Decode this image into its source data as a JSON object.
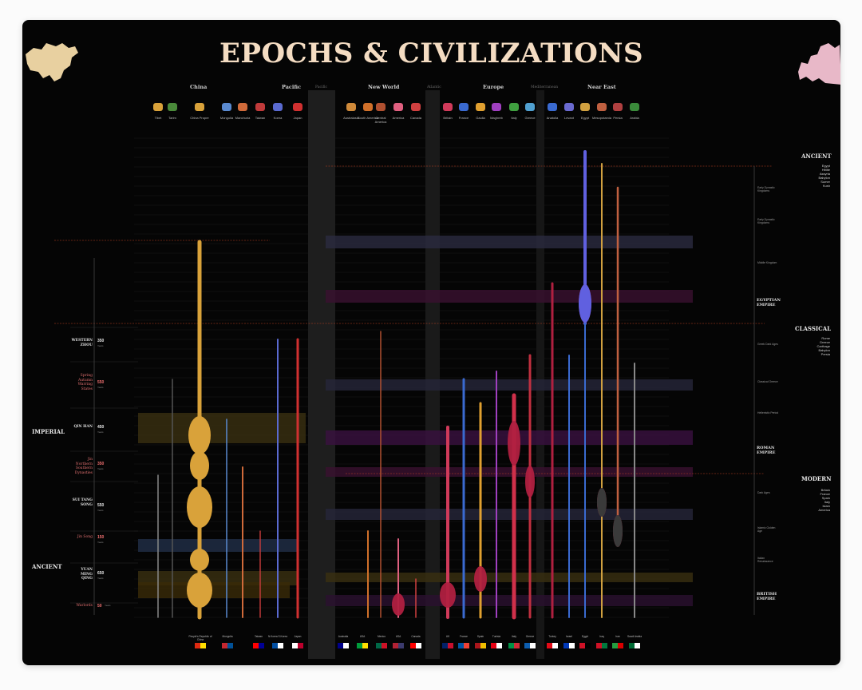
{
  "title": "EPOCHS & CIVILIZATIONS",
  "regions": [
    {
      "label": "China",
      "dim": false
    },
    {
      "label": "Pacific",
      "dim": false
    },
    {
      "label": "Pacific",
      "dim": true
    },
    {
      "label": "New World",
      "dim": false
    },
    {
      "label": "Atlantic",
      "dim": true
    },
    {
      "label": "Europe",
      "dim": false
    },
    {
      "label": "Mediterranean",
      "dim": true
    },
    {
      "label": "Near East",
      "dim": false
    }
  ],
  "columns": [
    {
      "label": "Tibet",
      "color": "#d9a23a"
    },
    {
      "label": "Tarim",
      "color": "#4a8a3a"
    },
    {
      "label": "China Proper",
      "color": "#d9a23a"
    },
    {
      "label": "Mongolia",
      "color": "#5a8ad0"
    },
    {
      "label": "Manchuria",
      "color": "#d06a3a"
    },
    {
      "label": "Taiwan",
      "color": "#c03a3a"
    },
    {
      "label": "Korea",
      "color": "#5a6ad0"
    },
    {
      "label": "Japan",
      "color": "#d03030"
    },
    {
      "label": "Australasia",
      "color": "#d08a3a"
    },
    {
      "label": "South America",
      "color": "#d0702a"
    },
    {
      "label": "Central America",
      "color": "#b05030"
    },
    {
      "label": "America",
      "color": "#e06080"
    },
    {
      "label": "Canada",
      "color": "#d04040"
    },
    {
      "label": "Britain",
      "color": "#d03a5a"
    },
    {
      "label": "France",
      "color": "#3a6ad0"
    },
    {
      "label": "Gaulia",
      "color": "#e0a030"
    },
    {
      "label": "Maghreb",
      "color": "#a040c0"
    },
    {
      "label": "Italy",
      "color": "#40a040"
    },
    {
      "label": "Greece",
      "color": "#50a0d0"
    },
    {
      "label": "Anatolia",
      "color": "#3a6ad0"
    },
    {
      "label": "Levant",
      "color": "#6a6ad0"
    },
    {
      "label": "Egypt",
      "color": "#d0a040"
    },
    {
      "label": "Mesopotamia",
      "color": "#c06040"
    },
    {
      "label": "Persia",
      "color": "#b04040"
    },
    {
      "label": "Arabia",
      "color": "#3a8a3a"
    }
  ],
  "epochs_left": [
    {
      "label": "IMPERIAL"
    },
    {
      "label": "ANCIENT"
    }
  ],
  "dynasties": [
    {
      "name": "WESTERN ZHOU",
      "num": "350",
      "red": false
    },
    {
      "name": "Spring Autumn Warring States",
      "num": "550",
      "red": true
    },
    {
      "name": "QIN HAN",
      "num": "450",
      "red": false
    },
    {
      "name": "Jin Northern Southern Dynasties",
      "num": "350",
      "red": true
    },
    {
      "name": "SUI TANG SONG",
      "num": "550",
      "red": false
    },
    {
      "name": "Jin Song",
      "num": "150",
      "red": true
    },
    {
      "name": "YUAN MING QING",
      "num": "650",
      "red": false
    },
    {
      "name": "Warlords",
      "num": "50",
      "red": true
    }
  ],
  "years_label": "Years",
  "epochs_right": [
    {
      "label": "ANCIENT",
      "items": [
        "Egypt",
        "Hittite",
        "Assyria",
        "Babylon",
        "Sumer",
        "Kush"
      ]
    },
    {
      "label": "CLASSICAL",
      "items": [
        "Rome",
        "Greece",
        "Carthage",
        "Babylon",
        "Persia"
      ]
    },
    {
      "label": "MODERN",
      "items": [
        "Britain",
        "France",
        "Spain",
        "Italy",
        "Islam",
        "America"
      ]
    }
  ],
  "right_empires": [
    {
      "label": "EGYPTIAN EMPIRE"
    },
    {
      "label": "ROMAN EMPIRE"
    },
    {
      "label": "BRITISH EMPIRE"
    }
  ],
  "right_periods": [
    {
      "label": "Early Dynastic Kingdoms"
    },
    {
      "label": "Early Dynastic Kingdoms"
    },
    {
      "label": "Middle Kingdom"
    },
    {
      "label": "Greek Dark Ages"
    },
    {
      "label": "Classical Greece"
    },
    {
      "label": "Hellenistic Period"
    },
    {
      "label": "Dark Ages"
    },
    {
      "label": "Islamic Golden Age"
    },
    {
      "label": "Italian Renaissance"
    }
  ],
  "bottom_flags": [
    {
      "label": "People's Republic of China",
      "colors": [
        "#de2910",
        "#ffde00"
      ]
    },
    {
      "label": "Mongolia",
      "colors": [
        "#c4272f",
        "#015197"
      ]
    },
    {
      "label": "Taiwan",
      "colors": [
        "#fe0000",
        "#000095"
      ]
    },
    {
      "label": "N.Korea S.Korea",
      "colors": [
        "#024fa2",
        "#ffffff"
      ]
    },
    {
      "label": "Japan",
      "colors": [
        "#ffffff",
        "#bc002d"
      ]
    },
    {
      "label": "Australia",
      "colors": [
        "#00008b",
        "#ffffff"
      ]
    },
    {
      "label": "USA",
      "colors": [
        "#009c3b",
        "#ffdf00"
      ]
    },
    {
      "label": "Mexico",
      "colors": [
        "#006847",
        "#ce1126"
      ]
    },
    {
      "label": "USA",
      "colors": [
        "#b22234",
        "#3c3b6e"
      ]
    },
    {
      "label": "Canada",
      "colors": [
        "#ff0000",
        "#ffffff"
      ]
    },
    {
      "label": "UK",
      "colors": [
        "#012169",
        "#c8102e"
      ]
    },
    {
      "label": "France",
      "colors": [
        "#0055a4",
        "#ef4135"
      ]
    },
    {
      "label": "Spain",
      "colors": [
        "#aa151b",
        "#f1bf00"
      ]
    },
    {
      "label": "Tunisia",
      "colors": [
        "#e70013",
        "#ffffff"
      ]
    },
    {
      "label": "Italy",
      "colors": [
        "#009246",
        "#ce2b37"
      ]
    },
    {
      "label": "Greece",
      "colors": [
        "#0d5eaf",
        "#ffffff"
      ]
    },
    {
      "label": "Turkey",
      "colors": [
        "#e30a17",
        "#ffffff"
      ]
    },
    {
      "label": "Israel",
      "colors": [
        "#0038b8",
        "#ffffff"
      ]
    },
    {
      "label": "Egypt",
      "colors": [
        "#ce1126",
        "#000000"
      ]
    },
    {
      "label": "Iraq",
      "colors": [
        "#ce1126",
        "#007a3d"
      ]
    },
    {
      "label": "Iran",
      "colors": [
        "#239f40",
        "#da0000"
      ]
    },
    {
      "label": "Saudi Arabia",
      "colors": [
        "#006c35",
        "#ffffff"
      ]
    }
  ]
}
